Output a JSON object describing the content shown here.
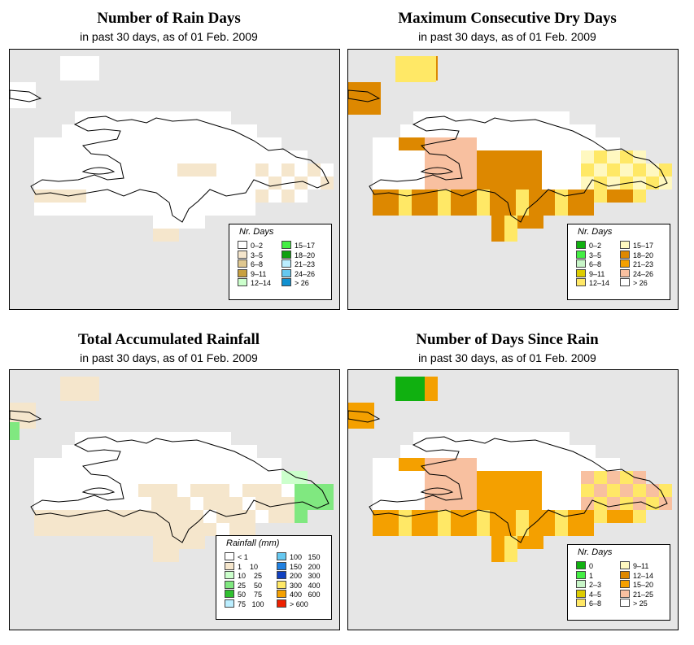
{
  "panels": [
    {
      "title": "Number of Rain Days",
      "subtitle": "in past 30 days, as of  01 Feb. 2009",
      "legend": {
        "title": "Nr. Days",
        "items": [
          {
            "label": "0–2",
            "color": "#ffffff"
          },
          {
            "label": "3–5",
            "color": "#f5e6cc"
          },
          {
            "label": "6–8",
            "color": "#e0c890"
          },
          {
            "label": "9–11",
            "color": "#c8a040"
          },
          {
            "label": "12–14",
            "color": "#ccffcc"
          },
          {
            "label": "15–17",
            "color": "#44ee44"
          },
          {
            "label": "18–20",
            "color": "#10a010"
          },
          {
            "label": "21–23",
            "color": "#bbeeff"
          },
          {
            "label": "24–26",
            "color": "#66c8f0"
          },
          {
            "label": "> 26",
            "color": "#1090d0"
          }
        ]
      }
    },
    {
      "title": "Maximum Consecutive Dry Days",
      "subtitle": "in past 30 days, as of  01 Feb. 2009",
      "legend": {
        "title": "Nr. Days",
        "items": [
          {
            "label": "0–2",
            "color": "#10b010"
          },
          {
            "label": "3–5",
            "color": "#44ee44"
          },
          {
            "label": "6–8",
            "color": "#c8f5c8"
          },
          {
            "label": "9–11",
            "color": "#ddcc00"
          },
          {
            "label": "12–14",
            "color": "#ffe866"
          },
          {
            "label": "15–17",
            "color": "#fff8c0"
          },
          {
            "label": "18–20",
            "color": "#dd8800"
          },
          {
            "label": "21–23",
            "color": "#f4a000"
          },
          {
            "label": "24–26",
            "color": "#f8c0a0"
          },
          {
            "label": "> 26",
            "color": "#ffffff"
          }
        ]
      }
    },
    {
      "title": "Total Accumulated Rainfall",
      "subtitle": "in past 30 days, as of  01 Feb. 2009",
      "legend": {
        "title": "Rainfall (mm)",
        "items": [
          {
            "label": "< 1",
            "color": "#ffffff"
          },
          {
            "label": "1    10",
            "color": "#f5e6cc"
          },
          {
            "label": "10    25",
            "color": "#ccffcc"
          },
          {
            "label": "25    50",
            "color": "#80e880"
          },
          {
            "label": "50    75",
            "color": "#30c030"
          },
          {
            "label": "75   100",
            "color": "#bbeeff"
          },
          {
            "label": "100   150",
            "color": "#66c8f0"
          },
          {
            "label": "150   200",
            "color": "#2080e0"
          },
          {
            "label": "200   300",
            "color": "#1040c0"
          },
          {
            "label": "300   400",
            "color": "#ffe866"
          },
          {
            "label": "400   600",
            "color": "#f4a000"
          },
          {
            "label": "> 600",
            "color": "#ee2000"
          }
        ]
      }
    },
    {
      "title": "Number of Days Since Rain",
      "subtitle": "in past 30 days, as of  01 Feb. 2009",
      "legend": {
        "title": "Nr. Days",
        "items": [
          {
            "label": "0",
            "color": "#10b010"
          },
          {
            "label": "1",
            "color": "#44ee44"
          },
          {
            "label": "2–3",
            "color": "#c8f5c8"
          },
          {
            "label": "4–5",
            "color": "#ddcc00"
          },
          {
            "label": "6–8",
            "color": "#ffe866"
          },
          {
            "label": "9–11",
            "color": "#fff8c0"
          },
          {
            "label": "12–14",
            "color": "#dd8800"
          },
          {
            "label": "15–20",
            "color": "#f4a000"
          },
          {
            "label": "21–25",
            "color": "#f8c0a0"
          },
          {
            "label": "> 25",
            "color": "#ffffff"
          }
        ]
      }
    }
  ],
  "colors": {
    "map_background": "#e6e6e6",
    "outline": "#000000"
  }
}
